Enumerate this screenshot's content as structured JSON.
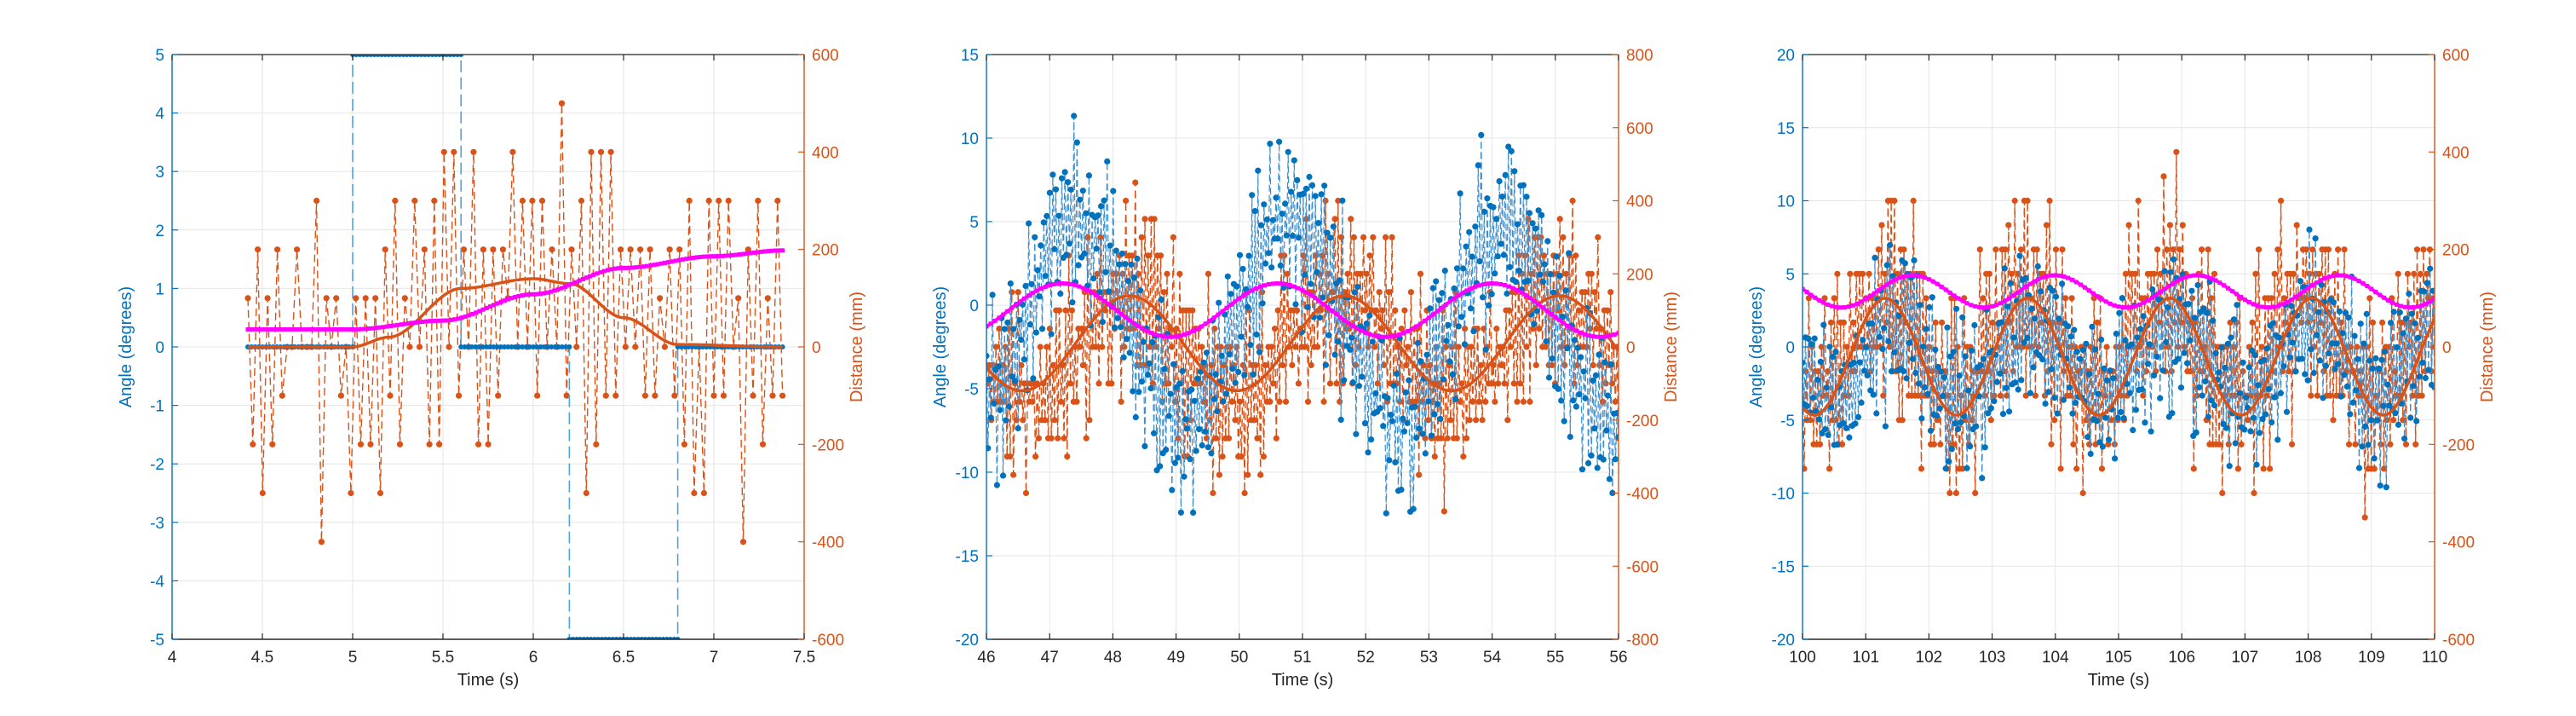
{
  "colors": {
    "angle": "#0072BD",
    "distance": "#D95319",
    "smooth_angle": "#FF00FF",
    "grid": "#e6e6e6",
    "axis": "#262626"
  },
  "chart_data": [
    {
      "type": "line",
      "xlabel": "Time (s)",
      "ylabel_left": "Angle (degrees)",
      "ylabel_right": "Distance (mm)",
      "xlim": [
        4,
        7.5
      ],
      "ylim_left": [
        -5,
        5
      ],
      "ylim_right": [
        -600,
        600
      ],
      "xticks": [
        4,
        4.5,
        5,
        5.5,
        6,
        6.5,
        7,
        7.5
      ],
      "xtick_labels": [
        "4",
        "4.5",
        "5",
        "5.5",
        "6",
        "6.5",
        "7",
        "7.5"
      ],
      "yticks_left": [
        -5,
        -4,
        -3,
        -2,
        -1,
        0,
        1,
        2,
        3,
        4,
        5
      ],
      "ytick_labels_left": [
        "-5",
        "-4",
        "-3",
        "-2",
        "-1",
        "0",
        "1",
        "2",
        "3",
        "4",
        "5"
      ],
      "yticks_right": [
        -600,
        -400,
        -200,
        0,
        200,
        400,
        600
      ],
      "ytick_labels_right": [
        "-600",
        "-400",
        "-200",
        "0",
        "200",
        "400",
        "600"
      ],
      "grid": true,
      "x_range": [
        4.42,
        7.38
      ],
      "angle_series": {
        "kind": "steps",
        "segments": [
          [
            4.42,
            5.0,
            0
          ],
          [
            5.0,
            5.6,
            5
          ],
          [
            5.6,
            6.2,
            0
          ],
          [
            6.2,
            6.8,
            -5
          ],
          [
            6.8,
            7.38,
            0
          ]
        ]
      },
      "distance_series": {
        "kind": "noise",
        "points": 110,
        "center": 0,
        "amplitude": 480,
        "quantum": 100,
        "trend": [
          [
            4.42,
            0
          ],
          [
            5.0,
            0
          ],
          [
            5.2,
            20
          ],
          [
            5.6,
            120
          ],
          [
            6.0,
            140
          ],
          [
            6.2,
            130
          ],
          [
            6.5,
            60
          ],
          [
            6.8,
            5
          ],
          [
            7.38,
            0
          ]
        ]
      },
      "distance_smooth": {
        "kind": "knots",
        "points": [
          [
            4.42,
            0
          ],
          [
            5.0,
            0
          ],
          [
            5.2,
            20
          ],
          [
            5.6,
            120
          ],
          [
            6.0,
            140
          ],
          [
            6.2,
            130
          ],
          [
            6.5,
            60
          ],
          [
            6.8,
            5
          ],
          [
            7.38,
            0
          ]
        ]
      },
      "angle_smooth": {
        "kind": "knots",
        "points": [
          [
            4.42,
            0.3
          ],
          [
            5.0,
            0.3
          ],
          [
            5.5,
            0.45
          ],
          [
            6.0,
            0.9
          ],
          [
            6.5,
            1.35
          ],
          [
            7.0,
            1.55
          ],
          [
            7.38,
            1.65
          ]
        ]
      }
    },
    {
      "type": "line",
      "xlabel": "Time (s)",
      "ylabel_left": "Angle (degrees)",
      "ylabel_right": "Distance (mm)",
      "xlim": [
        46,
        56
      ],
      "ylim_left": [
        -20,
        15
      ],
      "ylim_right": [
        -800,
        800
      ],
      "xticks": [
        46,
        47,
        48,
        49,
        50,
        51,
        52,
        53,
        54,
        55,
        56
      ],
      "xtick_labels": [
        "46",
        "47",
        "48",
        "49",
        "50",
        "51",
        "52",
        "53",
        "54",
        "55",
        "56"
      ],
      "yticks_left": [
        -20,
        -15,
        -10,
        -5,
        0,
        5,
        10,
        15
      ],
      "ytick_labels_left": [
        "-20",
        "-15",
        "-10",
        "-5",
        "0",
        "5",
        "10",
        "15"
      ],
      "yticks_right": [
        -800,
        -600,
        -400,
        -200,
        0,
        200,
        400,
        600,
        800
      ],
      "ytick_labels_right": [
        "-800",
        "-600",
        "-400",
        "-200",
        "0",
        "200",
        "400",
        "600",
        "800"
      ],
      "grid": true,
      "x_range": [
        46,
        56
      ],
      "angle_series": {
        "kind": "noise",
        "points": 420,
        "center": 0,
        "amplitude": 7,
        "quantum": 0,
        "wave": {
          "amp": 6,
          "period": 3.4,
          "phase": 1.9,
          "offset": -1
        }
      },
      "distance_series": {
        "kind": "noise",
        "points": 400,
        "center": 0,
        "amplitude": 330,
        "quantum": 50,
        "wave": {
          "amp": 140,
          "period": 3.4,
          "phase": 0.4,
          "offset": 0
        }
      },
      "distance_smooth": {
        "kind": "wave",
        "amp": 130,
        "period": 3.4,
        "phase": 0.35,
        "offset": 10
      },
      "angle_smooth": {
        "kind": "wave",
        "amp": 1.6,
        "period": 3.4,
        "phase": 2.3,
        "offset": -0.3
      }
    },
    {
      "type": "line",
      "xlabel": "Time (s)",
      "ylabel_left": "Angle (degrees)",
      "ylabel_right": "Distance (mm)",
      "xlim": [
        100,
        110
      ],
      "ylim_left": [
        -20,
        20
      ],
      "ylim_right": [
        -600,
        600
      ],
      "xticks": [
        100,
        101,
        102,
        103,
        104,
        105,
        106,
        107,
        108,
        109,
        110
      ],
      "xtick_labels": [
        "100",
        "101",
        "102",
        "103",
        "104",
        "105",
        "106",
        "107",
        "108",
        "109",
        "110"
      ],
      "yticks_left": [
        -20,
        -15,
        -10,
        -5,
        0,
        5,
        10,
        15,
        20
      ],
      "ytick_labels_left": [
        "-20",
        "-15",
        "-10",
        "-5",
        "0",
        "5",
        "10",
        "15",
        "20"
      ],
      "yticks_right": [
        -600,
        -400,
        -200,
        0,
        200,
        400,
        600
      ],
      "ytick_labels_right": [
        "-600",
        "-400",
        "-200",
        "0",
        "200",
        "400",
        "600"
      ],
      "grid": true,
      "x_range": [
        100,
        110
      ],
      "angle_series": {
        "kind": "noise",
        "points": 420,
        "center": 0,
        "amplitude": 7,
        "quantum": 0,
        "wave": {
          "amp": 2.5,
          "period": 2.2,
          "phase": 0.8,
          "offset": -1
        }
      },
      "distance_series": {
        "kind": "noise",
        "points": 400,
        "center": 0,
        "amplitude": 300,
        "quantum": 50,
        "wave": {
          "amp": 100,
          "period": 2.2,
          "phase": 1.2,
          "offset": 0
        }
      },
      "distance_smooth": {
        "kind": "wave",
        "amp": 120,
        "period": 2.25,
        "phase": 1.4,
        "offset": -20
      },
      "angle_smooth": {
        "kind": "wave",
        "amp": 1.1,
        "period": 2.25,
        "phase": 0.2,
        "offset": 3.8
      }
    }
  ]
}
